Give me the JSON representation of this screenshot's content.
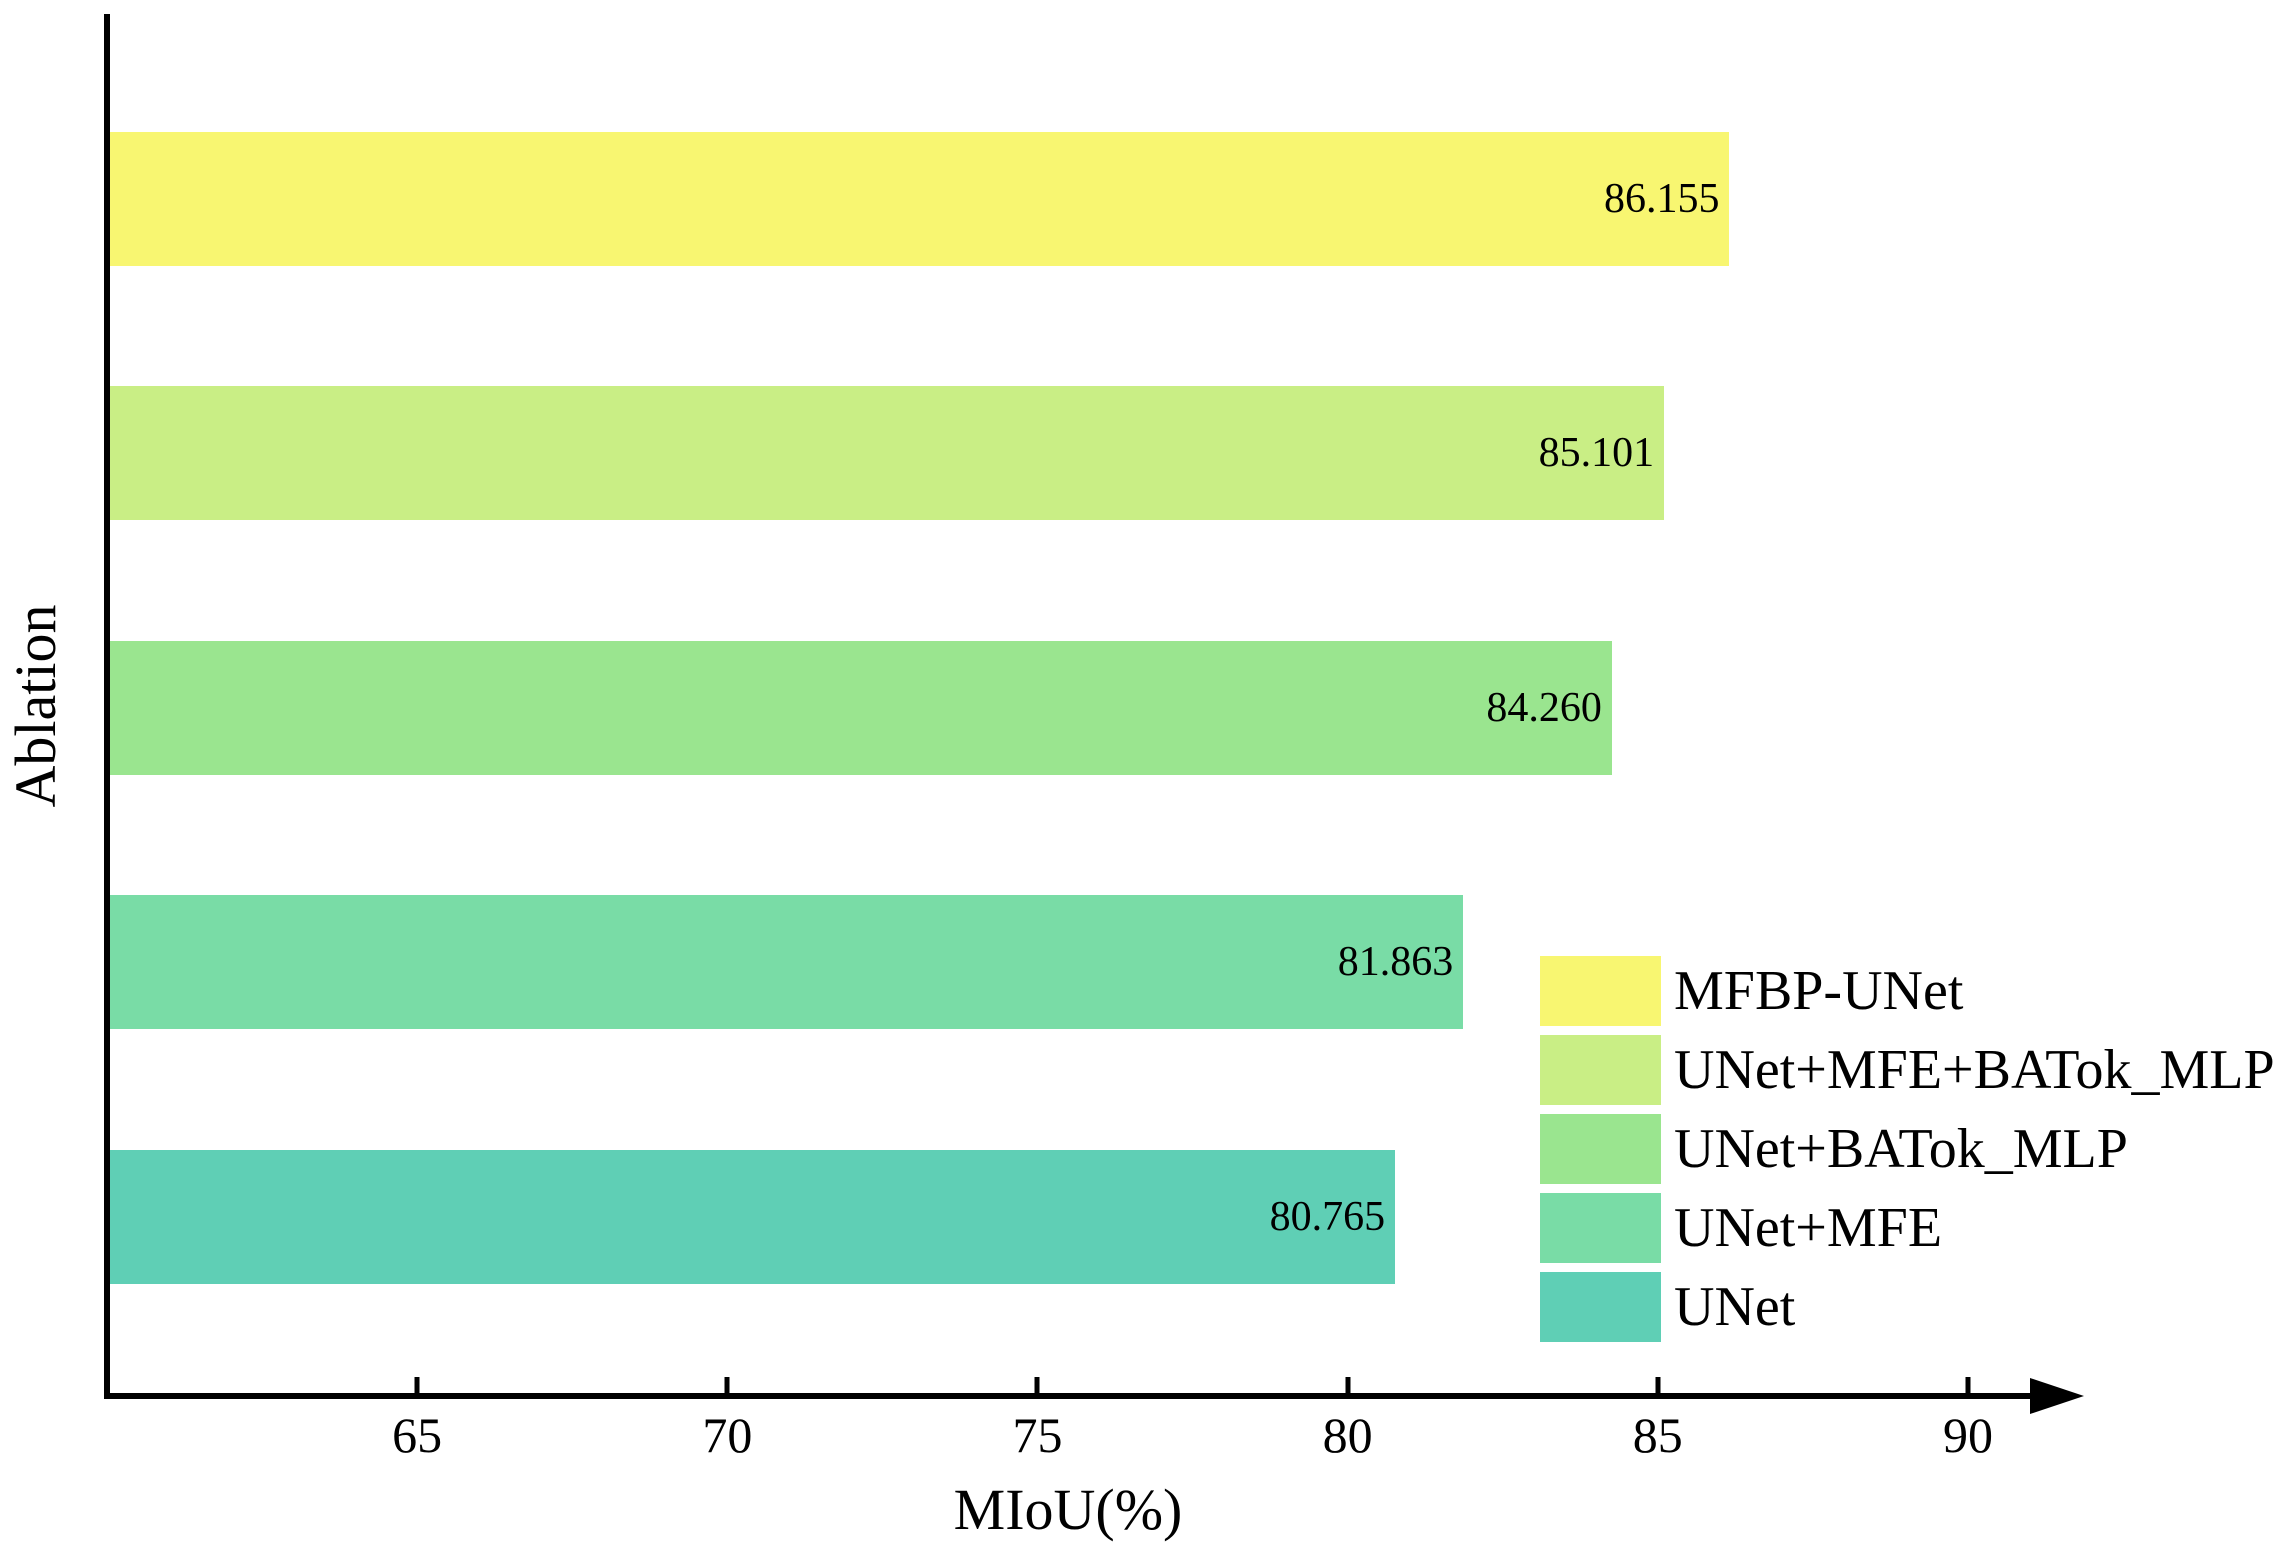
{
  "accent_colors": {
    "axis": "#000000",
    "text": "#000000",
    "background": "#ffffff"
  },
  "chart_data": {
    "type": "bar",
    "orientation": "horizontal",
    "title": "",
    "xlabel": "MIoU(%)",
    "ylabel": "Ablation",
    "xlim": [
      60,
      91
    ],
    "xticks": [
      "65",
      "70",
      "75",
      "80",
      "85",
      "90"
    ],
    "xtick_values": [
      65,
      70,
      75,
      80,
      85,
      90
    ],
    "grid": false,
    "categories": [
      "MFBP-UNet",
      "UNet+MFE+BATok_MLP",
      "UNet+BATok_MLP",
      "UNet+MFE",
      "UNet"
    ],
    "values": [
      86.155,
      85.101,
      84.26,
      81.863,
      80.765
    ],
    "value_labels": [
      "86.155",
      "85.101",
      "84.260",
      "81.863",
      "80.765"
    ],
    "colors": [
      "#F8F671",
      "#C9EE85",
      "#9AE58F",
      "#79DCA6",
      "#5FCFB5"
    ],
    "legend": {
      "position": "lower right",
      "frame": false,
      "entries": [
        "MFBP-UNet",
        "UNet+MFE+BATok_MLP",
        "UNet+BATok_MLP",
        "UNet+MFE",
        "UNet"
      ]
    }
  }
}
